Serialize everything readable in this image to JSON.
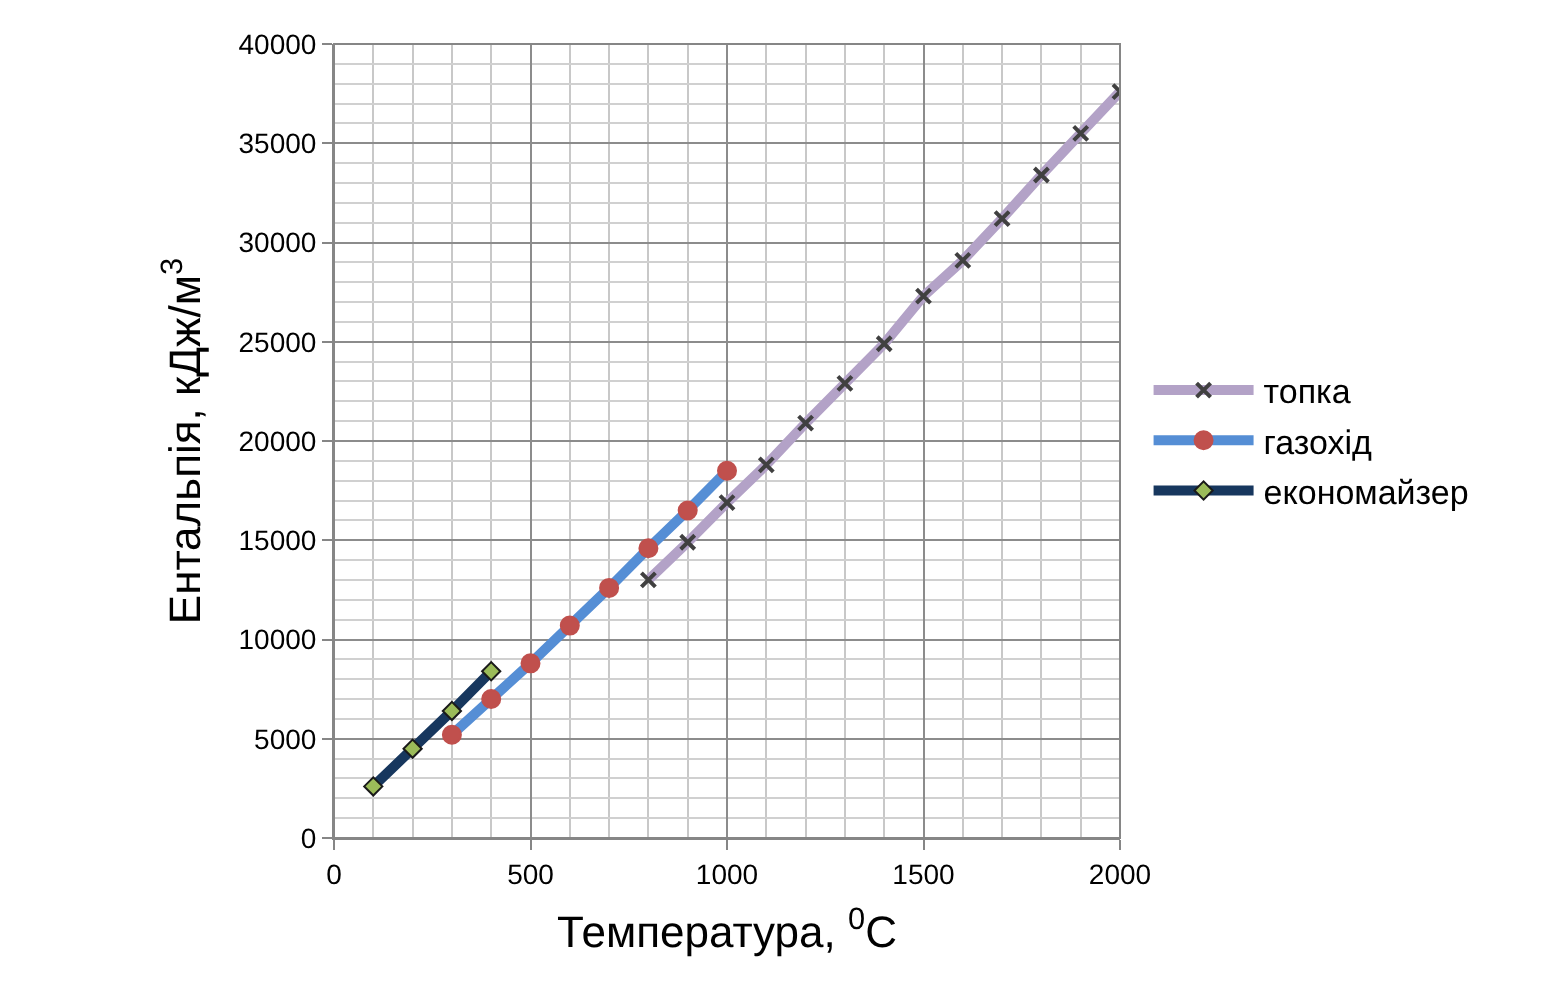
{
  "chart_data": {
    "type": "line",
    "xlabel": "Температура, $^{0}$C",
    "ylabel": "Ентальпія, кДж/м$^{3}$",
    "xlim": [
      0,
      2000
    ],
    "xticks": [
      0,
      500,
      1000,
      1500,
      2000
    ],
    "ylim": [
      0,
      40000
    ],
    "yticks": [
      0,
      5000,
      10000,
      15000,
      20000,
      25000,
      30000,
      35000,
      40000
    ],
    "grid": true,
    "legend": "right",
    "line_style": "solid",
    "series": [
      {
        "name": "топка",
        "color": "#b3a2c7",
        "marker": "cross",
        "x": [
          800,
          900,
          1000,
          1100,
          1200,
          1300,
          1400,
          1500,
          1600,
          1700,
          1800,
          1900,
          2000
        ],
        "values": [
          13000,
          14900,
          16900,
          18800,
          20900,
          22900,
          24900,
          27300,
          29100,
          31200,
          33400,
          35500,
          37600
        ]
      },
      {
        "name": "газохід",
        "color": "#558ed5",
        "marker": "circle",
        "x": [
          300,
          400,
          500,
          600,
          700,
          800,
          900,
          1000
        ],
        "values": [
          5200,
          7000,
          8800,
          10700,
          12600,
          14600,
          16500,
          18500
        ]
      },
      {
        "name": "економайзер",
        "color": "#17375e",
        "marker": "diamond",
        "x": [
          100,
          200,
          300,
          400
        ],
        "values": [
          2600,
          4500,
          6400,
          8400
        ]
      }
    ]
  }
}
